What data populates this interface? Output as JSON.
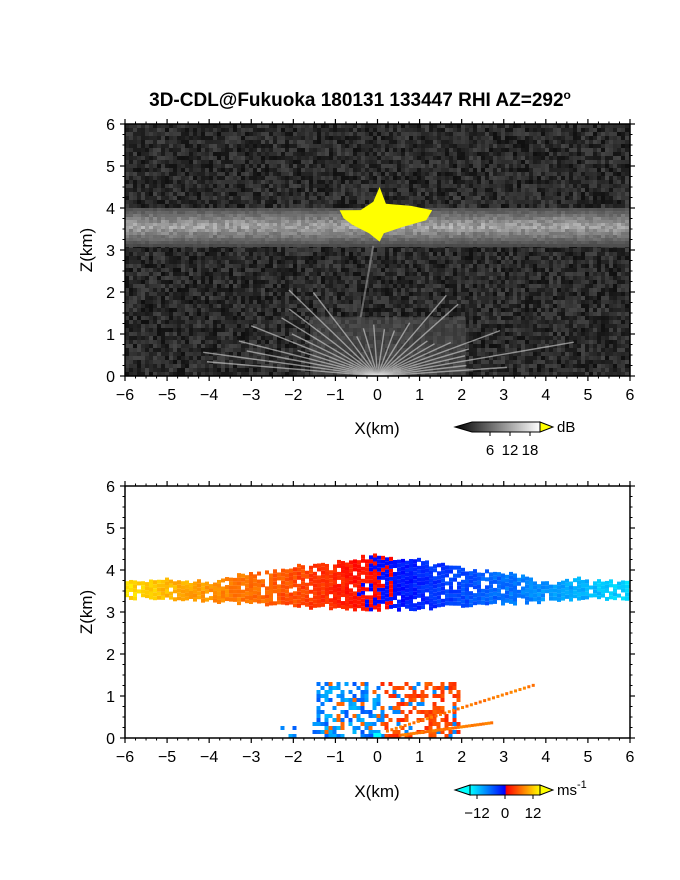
{
  "chart_data": [
    {
      "type": "heatmap",
      "title": "3D-CDL@Fukuoka 180131 133447 RHI AZ=292",
      "title_superscript": "o",
      "xlabel": "X(km)",
      "ylabel": "Z(km)",
      "xlim": [
        -6,
        6
      ],
      "ylim": [
        0,
        6
      ],
      "xticks": [
        "-6",
        "-5",
        "-4",
        "-3",
        "-2",
        "-1",
        "0",
        "1",
        "2",
        "3",
        "4",
        "5",
        "6"
      ],
      "yticks": [
        "0",
        "1",
        "2",
        "3",
        "4",
        "5",
        "6"
      ],
      "colorbar": {
        "label": "dB",
        "ticks": [
          "6",
          "12",
          "18"
        ],
        "range": [
          0,
          21
        ],
        "saturation_color": "#ffff00"
      },
      "features": [
        {
          "kind": "cloud_layer",
          "x": [
            -6,
            6
          ],
          "z": [
            3.1,
            4.0
          ]
        },
        {
          "kind": "saturated_core",
          "x": [
            -0.9,
            1.3
          ],
          "z": [
            3.2,
            4.5
          ]
        },
        {
          "kind": "low_clutter",
          "x": [
            -1.6,
            2.1
          ],
          "z": [
            0,
            1.4
          ]
        }
      ]
    },
    {
      "type": "heatmap",
      "xlabel": "X(km)",
      "ylabel": "Z(km)",
      "xlim": [
        -6,
        6
      ],
      "ylim": [
        0,
        6
      ],
      "xticks": [
        "-6",
        "-5",
        "-4",
        "-3",
        "-2",
        "-1",
        "0",
        "1",
        "2",
        "3",
        "4",
        "5",
        "6"
      ],
      "yticks": [
        "0",
        "1",
        "2",
        "3",
        "4",
        "5",
        "6"
      ],
      "colorbar": {
        "label": "ms",
        "label_superscript": "-1",
        "ticks": [
          "-12",
          "0",
          "12"
        ],
        "range": [
          -15,
          15
        ]
      },
      "features": [
        {
          "kind": "velocity_layer",
          "x": [
            -6,
            6
          ],
          "z": [
            3.1,
            4.4
          ],
          "velocity_at_x_min": 13,
          "velocity_at_x_max": -13
        },
        {
          "kind": "low_mixed_velocity",
          "x": [
            -2.4,
            2.0
          ],
          "z": [
            0,
            1.4
          ]
        }
      ]
    }
  ]
}
